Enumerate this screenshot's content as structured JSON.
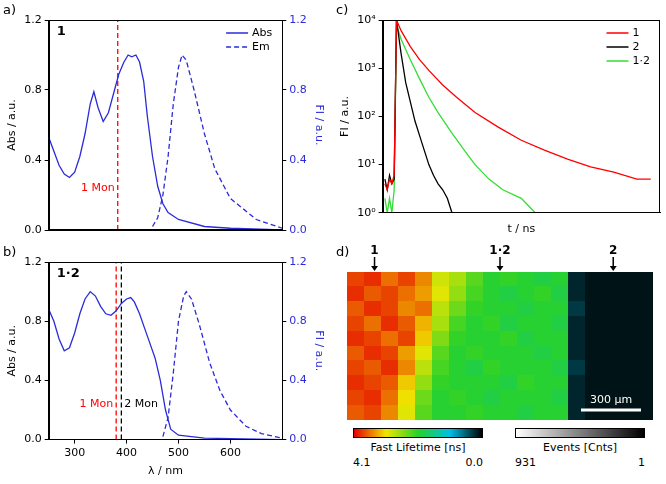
{
  "chart_data": [
    {
      "type": "line",
      "panel_label": "a)",
      "title": "1",
      "y_label": "Abs / a.u.",
      "y2_label": "FI / a.u.",
      "xlim": [
        250,
        700
      ],
      "ylim": [
        0,
        1.2
      ],
      "yticks": [
        {
          "value": 0,
          "label": "0.0"
        },
        0.4,
        0.8,
        1.2
      ],
      "y2lim": [
        0,
        1.2
      ],
      "y2ticks": [
        {
          "value": 0,
          "label": "0.0"
        },
        0.4,
        0.8,
        1.2
      ],
      "legend": "top right",
      "tick_labels": "y",
      "series": [
        {
          "name": "Abs",
          "color": "#2b2bd9",
          "line_style": "solid",
          "axis": "y",
          "x": [
            250,
            260,
            270,
            280,
            290,
            300,
            310,
            320,
            330,
            337,
            345,
            355,
            365,
            375,
            385,
            395,
            403,
            410,
            418,
            425,
            433,
            440,
            450,
            460,
            470,
            480,
            500,
            550,
            600,
            700
          ],
          "values": [
            0.53,
            0.45,
            0.37,
            0.32,
            0.3,
            0.33,
            0.42,
            0.55,
            0.72,
            0.79,
            0.7,
            0.62,
            0.67,
            0.78,
            0.89,
            0.96,
            1.0,
            0.99,
            1.0,
            0.96,
            0.85,
            0.65,
            0.42,
            0.25,
            0.15,
            0.1,
            0.06,
            0.02,
            0.01,
            0.0
          ]
        },
        {
          "name": "Em",
          "color": "#2b2bd9",
          "line_style": "dashed",
          "axis": "y2",
          "x": [
            450,
            460,
            470,
            480,
            490,
            500,
            507,
            515,
            530,
            550,
            570,
            600,
            650,
            700
          ],
          "values": [
            0.02,
            0.07,
            0.2,
            0.42,
            0.72,
            0.93,
            1.0,
            0.97,
            0.8,
            0.55,
            0.35,
            0.18,
            0.06,
            0.01
          ]
        }
      ],
      "annotations": [
        {
          "text": "1 Mon",
          "x": 383,
          "color": "#ff0000",
          "line_style": "dashed"
        }
      ]
    },
    {
      "type": "line",
      "panel_label": "b)",
      "title": "1·2",
      "x_label": "λ / nm",
      "y_label": "Abs / a.u.",
      "y2_label": "FI / a.u.",
      "xlim": [
        250,
        700
      ],
      "xticks": [
        300,
        400,
        500,
        600
      ],
      "ylim": [
        0,
        1.2
      ],
      "yticks": [
        {
          "value": 0,
          "label": "0.0"
        },
        0.4,
        0.8,
        1.2
      ],
      "y2lim": [
        0,
        1.2
      ],
      "y2ticks": [
        {
          "value": 0,
          "label": "0.0"
        },
        0.4,
        0.8,
        1.2
      ],
      "series": [
        {
          "name": "Abs",
          "color": "#2b2bd9",
          "line_style": "solid",
          "axis": "y",
          "x": [
            250,
            260,
            270,
            280,
            290,
            300,
            310,
            320,
            330,
            340,
            350,
            360,
            370,
            380,
            390,
            400,
            408,
            415,
            425,
            435,
            445,
            455,
            465,
            475,
            485,
            500,
            550,
            700
          ],
          "values": [
            0.88,
            0.8,
            0.68,
            0.6,
            0.62,
            0.72,
            0.85,
            0.95,
            1.0,
            0.97,
            0.9,
            0.85,
            0.84,
            0.87,
            0.92,
            0.95,
            0.96,
            0.93,
            0.85,
            0.75,
            0.65,
            0.55,
            0.4,
            0.2,
            0.07,
            0.03,
            0.01,
            0.0
          ]
        },
        {
          "name": "Em",
          "color": "#2b2bd9",
          "line_style": "dashed",
          "axis": "y2",
          "x": [
            470,
            480,
            490,
            500,
            510,
            515,
            525,
            540,
            560,
            580,
            600,
            630,
            660,
            700
          ],
          "values": [
            0.02,
            0.15,
            0.45,
            0.8,
            0.97,
            1.0,
            0.95,
            0.78,
            0.52,
            0.33,
            0.2,
            0.09,
            0.04,
            0.01
          ]
        }
      ],
      "annotations": [
        {
          "text": "1 Mon",
          "x": 380,
          "color": "#ff0000",
          "line_style": "dashed"
        },
        {
          "text": "2 Mon",
          "x": 390,
          "color": "#000000",
          "line_style": "dashed"
        }
      ]
    },
    {
      "type": "line",
      "panel_label": "c)",
      "x_label": "t / ns",
      "y_label": "FI / a.u.",
      "xlim": [
        0,
        60
      ],
      "log": "y",
      "ylim": [
        1,
        10000
      ],
      "yticks": [
        {
          "value": 1,
          "label": "10⁰"
        },
        {
          "value": 10,
          "label": "10¹"
        },
        {
          "value": 100,
          "label": "10²"
        },
        {
          "value": 1000,
          "label": "10³"
        },
        {
          "value": 10000,
          "label": "10⁴"
        }
      ],
      "legend": "top right",
      "tick_labels": "y",
      "series": [
        {
          "name": "1",
          "color": "#ff0000",
          "x": [
            0.5,
            1,
            1.5,
            2,
            2.5,
            3,
            4,
            6,
            8,
            10,
            13,
            16,
            20,
            25,
            30,
            35,
            40,
            45,
            50,
            55,
            58
          ],
          "values": [
            4,
            3,
            5,
            4,
            6,
            10000,
            6000,
            2800,
            1500,
            900,
            450,
            250,
            120,
            60,
            32,
            20,
            13,
            9,
            7,
            5,
            5
          ]
        },
        {
          "name": "2",
          "color": "#000000",
          "x": [
            0.5,
            1,
            1.5,
            2,
            2.5,
            3,
            4,
            5,
            6,
            7,
            8,
            9,
            10,
            11,
            12,
            13,
            14,
            15
          ],
          "values": [
            5,
            3,
            6,
            4,
            5,
            10000,
            2000,
            500,
            200,
            80,
            40,
            20,
            10,
            6,
            4,
            3,
            2,
            1
          ]
        },
        {
          "name": "1·2",
          "color": "#33dd33",
          "x": [
            0.5,
            1,
            1.5,
            2,
            2.5,
            3,
            4,
            6,
            8,
            10,
            12,
            15,
            18,
            20,
            23,
            26,
            30,
            33,
            34
          ],
          "values": [
            2,
            1,
            2,
            1,
            3,
            8000,
            4000,
            1500,
            600,
            250,
            120,
            45,
            18,
            10,
            5,
            3,
            2,
            1,
            1
          ]
        }
      ]
    },
    {
      "type": "heatmap",
      "panel_label": "d)",
      "tick_labels": false,
      "region_labels": [
        "1",
        "1·2",
        "2"
      ],
      "scale_bar": "300 µm",
      "cells": [
        [
          3.8,
          3.9,
          3.6,
          3.8,
          3.5,
          2.9,
          2.7,
          2.3,
          2.0,
          2.1,
          2.0,
          1.9,
          2.0,
          0.2,
          0.1,
          0.1,
          0.1,
          0.1
        ],
        [
          3.9,
          3.7,
          3.8,
          3.6,
          3.4,
          3.0,
          2.6,
          2.2,
          2.0,
          1.9,
          2.0,
          2.1,
          1.9,
          0.2,
          0.1,
          0.1,
          0.1,
          0.1
        ],
        [
          3.7,
          3.9,
          3.8,
          3.5,
          3.6,
          2.8,
          2.4,
          2.1,
          2.0,
          2.0,
          1.9,
          2.0,
          2.0,
          0.3,
          0.1,
          0.1,
          0.1,
          0.1
        ],
        [
          3.8,
          3.6,
          3.9,
          3.7,
          3.3,
          2.7,
          2.2,
          2.0,
          2.1,
          1.9,
          2.0,
          2.0,
          1.9,
          0.2,
          0.1,
          0.1,
          0.1,
          0.1
        ],
        [
          3.9,
          3.8,
          3.6,
          3.8,
          3.2,
          2.5,
          2.1,
          2.0,
          2.0,
          2.1,
          1.9,
          2.0,
          2.0,
          0.2,
          0.1,
          0.1,
          0.1,
          0.1
        ],
        [
          3.7,
          3.9,
          3.8,
          3.4,
          3.0,
          2.3,
          2.0,
          2.1,
          2.0,
          2.0,
          2.0,
          1.9,
          2.0,
          0.2,
          0.1,
          0.1,
          0.1,
          0.1
        ],
        [
          3.8,
          3.7,
          3.9,
          3.5,
          2.8,
          2.2,
          2.0,
          1.9,
          2.1,
          2.0,
          2.0,
          2.0,
          1.9,
          0.3,
          0.1,
          0.1,
          0.1,
          0.1
        ],
        [
          3.9,
          3.8,
          3.7,
          3.2,
          2.6,
          2.1,
          2.0,
          2.0,
          2.0,
          1.9,
          2.1,
          2.0,
          2.0,
          0.2,
          0.1,
          0.1,
          0.1,
          0.1
        ],
        [
          3.8,
          3.9,
          3.6,
          3.1,
          2.4,
          2.0,
          2.1,
          2.0,
          1.9,
          2.0,
          2.0,
          2.0,
          1.9,
          0.2,
          0.1,
          0.1,
          0.1,
          0.1
        ],
        [
          3.7,
          3.8,
          3.5,
          3.0,
          2.3,
          2.0,
          2.0,
          2.1,
          2.0,
          2.0,
          1.9,
          2.0,
          2.0,
          0.2,
          0.1,
          0.1,
          0.1,
          0.1
        ]
      ],
      "colorbar": {
        "title": "Fast Lifetime [ns]",
        "range": [
          4.1,
          0
        ],
        "ticks": [
          4.1,
          {
            "value": 0,
            "label": "0.0"
          }
        ]
      },
      "colorbar2": {
        "title": "Events [Cnts]",
        "range": [
          931,
          1
        ],
        "ticks": [
          931,
          1
        ]
      }
    }
  ]
}
